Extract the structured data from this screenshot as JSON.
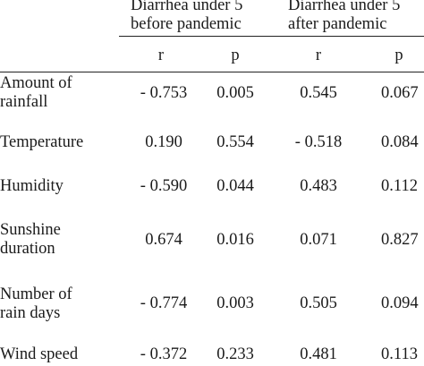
{
  "table": {
    "group_headers": [
      {
        "line1": "Diarrhea under 5",
        "line2": "before pandemic"
      },
      {
        "line1": "Diarrhea under 5",
        "line2": "after pandemic"
      }
    ],
    "sub_headers": [
      "r",
      "p",
      "r",
      "p"
    ],
    "rows": [
      {
        "label_lines": [
          "Amount of",
          "rainfall"
        ],
        "values": [
          "- 0.753",
          "0.005",
          "0.545",
          "0.067"
        ]
      },
      {
        "label_lines": [
          "Temperature"
        ],
        "values": [
          "0.190",
          "0.554",
          "- 0.518",
          "0.084"
        ]
      },
      {
        "label_lines": [
          "Humidity"
        ],
        "values": [
          "- 0.590",
          "0.044",
          "0.483",
          "0.112"
        ]
      },
      {
        "label_lines": [
          "Sunshine",
          "duration"
        ],
        "values": [
          "0.674",
          "0.016",
          "0.071",
          "0.827"
        ]
      },
      {
        "label_lines": [
          "Number of",
          "rain days"
        ],
        "values": [
          "- 0.774",
          "0.003",
          "0.505",
          "0.094"
        ]
      },
      {
        "label_lines": [
          "Wind speed"
        ],
        "values": [
          "- 0.372",
          "0.233",
          "0.481",
          "0.113"
        ]
      }
    ]
  }
}
